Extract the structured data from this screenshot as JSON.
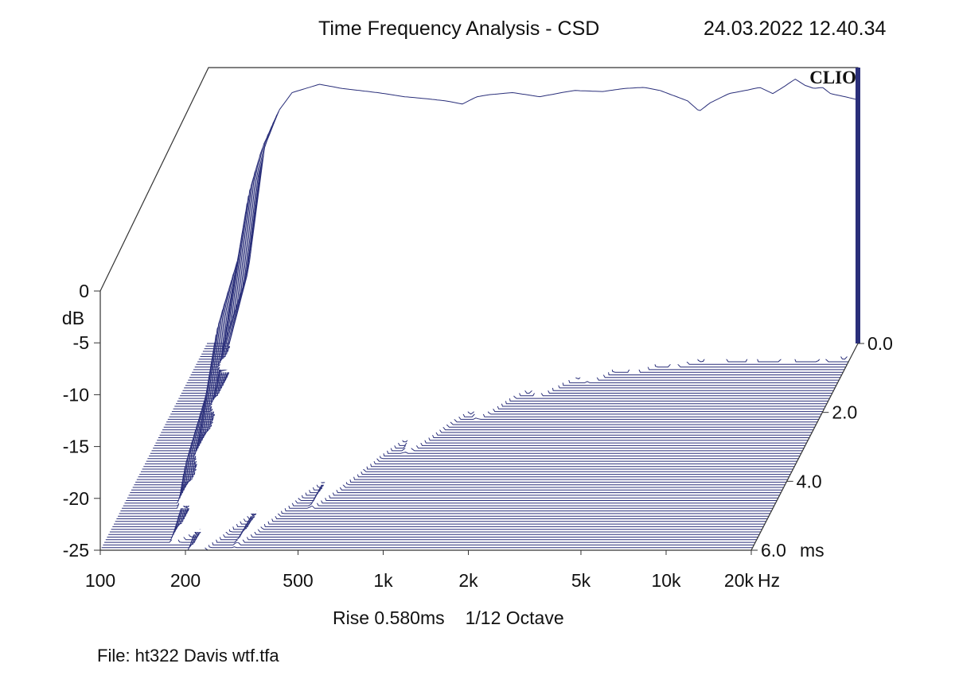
{
  "header": {
    "title": "Time Frequency Analysis - CSD",
    "timestamp": "24.03.2022 12.40.34",
    "logo": "CLIO"
  },
  "footer": {
    "rise": "Rise 0.580ms",
    "resolution": "1/12 Octave",
    "file": "File: ht322 Davis wtf.tfa"
  },
  "colors": {
    "trace": "#2a2f7a",
    "axis": "#333333",
    "background": "#ffffff"
  },
  "chart_data": {
    "type": "area",
    "subtype": "cumulative spectral decay waterfall",
    "x_scale": "log",
    "x_unit": "Hz",
    "xlim": [
      100,
      20000
    ],
    "x_ticks": [
      100,
      200,
      500,
      1000,
      2000,
      5000,
      10000,
      20000
    ],
    "x_tick_labels": [
      "100",
      "200",
      "500",
      "1k",
      "2k",
      "5k",
      "10k",
      "20k"
    ],
    "x_unit_label": "Hz",
    "ylabel": "dB",
    "ylim": [
      -25,
      0
    ],
    "y_ticks": [
      0,
      -5,
      -10,
      -15,
      -20,
      -25
    ],
    "y_tick_labels": [
      "0",
      "-5",
      "-10",
      "-15",
      "-20",
      "-25"
    ],
    "z_label": "ms",
    "zlim": [
      0,
      6
    ],
    "z_ticks": [
      0,
      2,
      4,
      6
    ],
    "z_tick_labels": [
      "0.0",
      "2.0",
      "4.0",
      "6.0"
    ],
    "slice_count": 80,
    "initial_response": {
      "freq": [
        100,
        120,
        140,
        160,
        180,
        200,
        250,
        300,
        400,
        500,
        600,
        700,
        800,
        900,
        1000,
        1200,
        1500,
        1800,
        2000,
        2500,
        3000,
        3500,
        4000,
        5000,
        5500,
        6000,
        7000,
        8000,
        9000,
        10000,
        11000,
        12000,
        13000,
        14000,
        15000,
        16000,
        18000,
        20000
      ],
      "level_db": [
        -25,
        -25,
        -18,
        -6,
        -2.5,
        -0.8,
        0,
        -0.4,
        -0.8,
        -1.2,
        -1.4,
        -1.6,
        -1.9,
        -1.2,
        -1.0,
        -0.8,
        -1.2,
        -0.8,
        -0.6,
        -0.7,
        -0.4,
        -0.3,
        -0.6,
        -1.6,
        -2.6,
        -1.8,
        -0.9,
        -0.6,
        -0.3,
        -0.9,
        -0.2,
        0.5,
        -0.1,
        -0.4,
        -0.3,
        -0.9,
        -1.2,
        -1.5
      ]
    }
  }
}
